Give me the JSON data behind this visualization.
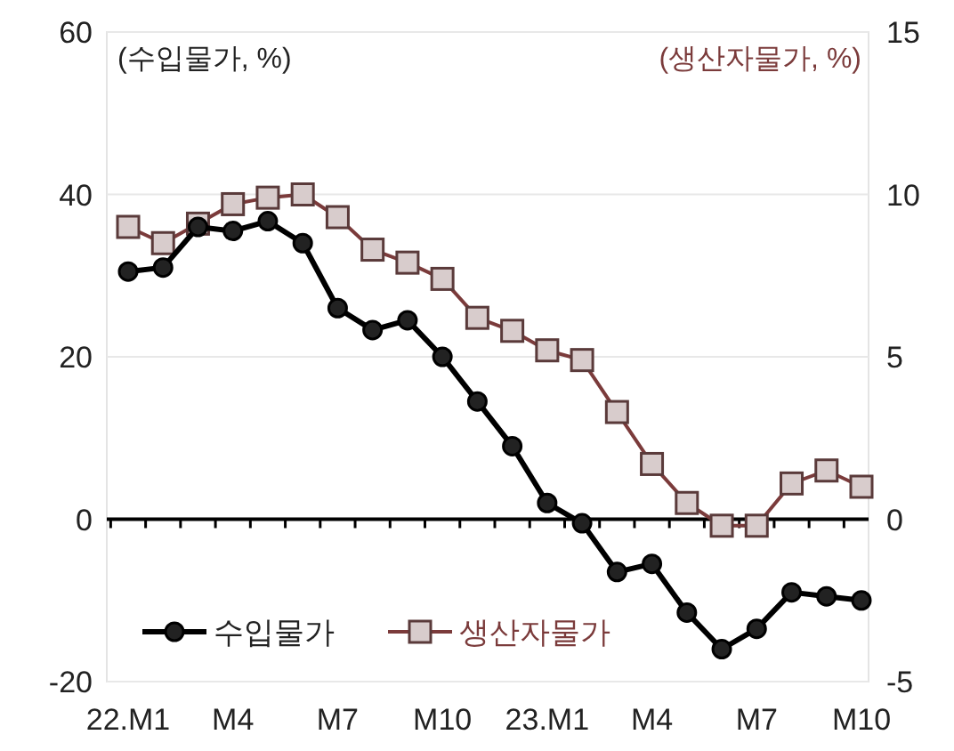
{
  "chart_data": {
    "type": "line",
    "ylabel": "(수입물가, %)",
    "y2label": "(생산자물가, %)",
    "categories": [
      "22.M1",
      null,
      null,
      "M4",
      null,
      null,
      "M7",
      null,
      null,
      "M10",
      null,
      null,
      "23.M1",
      null,
      null,
      "M4",
      null,
      null,
      "M7",
      null,
      null,
      "M10"
    ],
    "series": [
      {
        "name": "수입물가",
        "color": "#000000",
        "marker": "circle",
        "values": [
          30.5,
          31,
          36,
          35.5,
          36.7,
          34,
          26,
          23.3,
          24.5,
          20,
          14.5,
          9,
          2,
          -0.5,
          -6.5,
          -5.5,
          -11.5,
          -16,
          -13.5,
          -9,
          -9.5,
          -10
        ]
      },
      {
        "name": "생산자물가",
        "color": "#7b3b3b",
        "marker": "square",
        "axis": "y2",
        "values": [
          9.0,
          8.5,
          9.1,
          9.7,
          9.9,
          10.0,
          9.3,
          8.3,
          7.9,
          7.4,
          6.2,
          5.8,
          5.2,
          4.9,
          3.3,
          1.7,
          0.5,
          -0.2,
          -0.2,
          1.1,
          1.5,
          1.0
        ]
      }
    ],
    "ylim": [
      -20,
      60
    ],
    "yticks": [
      -20,
      0,
      20,
      40,
      60
    ],
    "y2lim": [
      -5,
      15
    ],
    "y2ticks": [
      -5,
      0,
      5,
      10,
      15
    ],
    "grid": "y",
    "legend": "bottom left"
  }
}
